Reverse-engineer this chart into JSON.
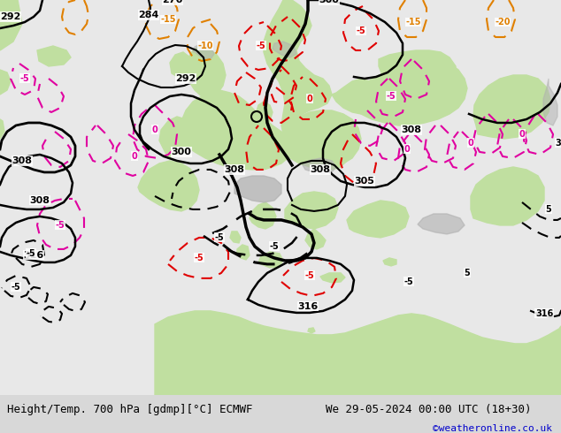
{
  "title_left": "Height/Temp. 700 hPa [gdmp][°C] ECMWF",
  "title_right": "We 29-05-2024 00:00 UTC (18+30)",
  "credit": "©weatheronline.co.uk",
  "bg_color": "#d8d8d8",
  "land_color": "#c0dfa0",
  "land_color2": "#b8d898",
  "sea_color": "#e8e8e8",
  "gray_color": "#b0b0b0",
  "title_fontsize": 9,
  "credit_fontsize": 8,
  "credit_color": "#0000cc",
  "figsize": [
    6.34,
    4.9
  ],
  "dpi": 100
}
